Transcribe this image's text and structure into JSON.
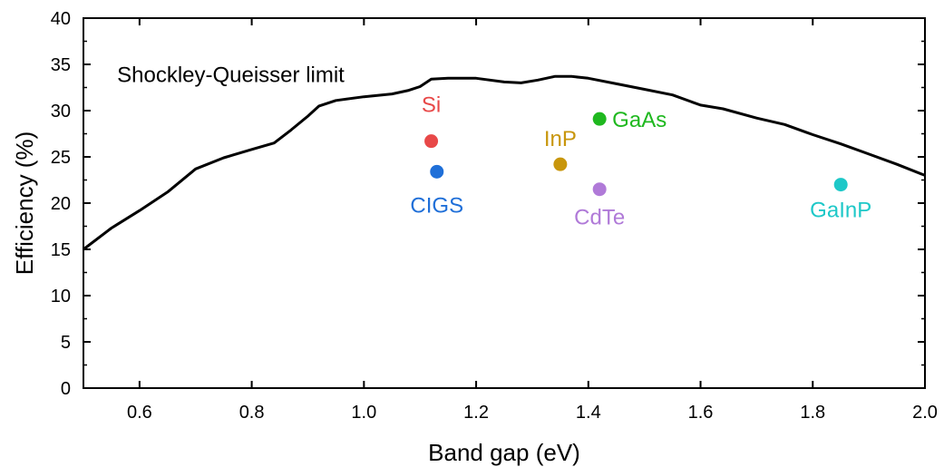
{
  "chart_data": {
    "type": "scatter",
    "xlabel": "Band gap (eV)",
    "ylabel": "Efficiency (%)",
    "xlim": [
      0.5,
      2.0
    ],
    "ylim": [
      0,
      40
    ],
    "xticks": [
      "0.6",
      "0.8",
      "1.0",
      "1.2",
      "1.4",
      "1.6",
      "1.8",
      "2.0"
    ],
    "yticks": [
      "0",
      "5",
      "10",
      "15",
      "20",
      "25",
      "30",
      "35",
      "40"
    ],
    "grid": false,
    "curve": {
      "name": "Shockley-Queisser limit",
      "color": "#000000",
      "x": [
        0.5,
        0.55,
        0.6,
        0.65,
        0.7,
        0.75,
        0.8,
        0.84,
        0.87,
        0.9,
        0.92,
        0.95,
        1.0,
        1.05,
        1.08,
        1.1,
        1.12,
        1.15,
        1.2,
        1.25,
        1.28,
        1.31,
        1.34,
        1.37,
        1.4,
        1.45,
        1.5,
        1.55,
        1.6,
        1.64,
        1.7,
        1.75,
        1.8,
        1.85,
        1.9,
        1.95,
        2.0
      ],
      "y": [
        15.0,
        17.3,
        19.2,
        21.2,
        23.7,
        24.9,
        25.8,
        26.5,
        27.9,
        29.4,
        30.5,
        31.1,
        31.5,
        31.8,
        32.2,
        32.6,
        33.4,
        33.5,
        33.5,
        33.1,
        33.0,
        33.3,
        33.7,
        33.7,
        33.5,
        32.9,
        32.3,
        31.7,
        30.6,
        30.2,
        29.2,
        28.5,
        27.4,
        26.4,
        25.3,
        24.2,
        23.0
      ]
    },
    "points": [
      {
        "label": "Si",
        "x": 1.12,
        "y": 26.7,
        "color": "#e84848"
      },
      {
        "label": "CIGS",
        "x": 1.13,
        "y": 23.4,
        "color": "#1f6fd8"
      },
      {
        "label": "InP",
        "x": 1.35,
        "y": 24.2,
        "color": "#c8960c"
      },
      {
        "label": "GaAs",
        "x": 1.42,
        "y": 29.1,
        "color": "#1fb81f"
      },
      {
        "label": "CdTe",
        "x": 1.42,
        "y": 21.5,
        "color": "#b07ad8"
      },
      {
        "label": "GaInP",
        "x": 1.85,
        "y": 22.0,
        "color": "#1ec8c8"
      }
    ]
  }
}
